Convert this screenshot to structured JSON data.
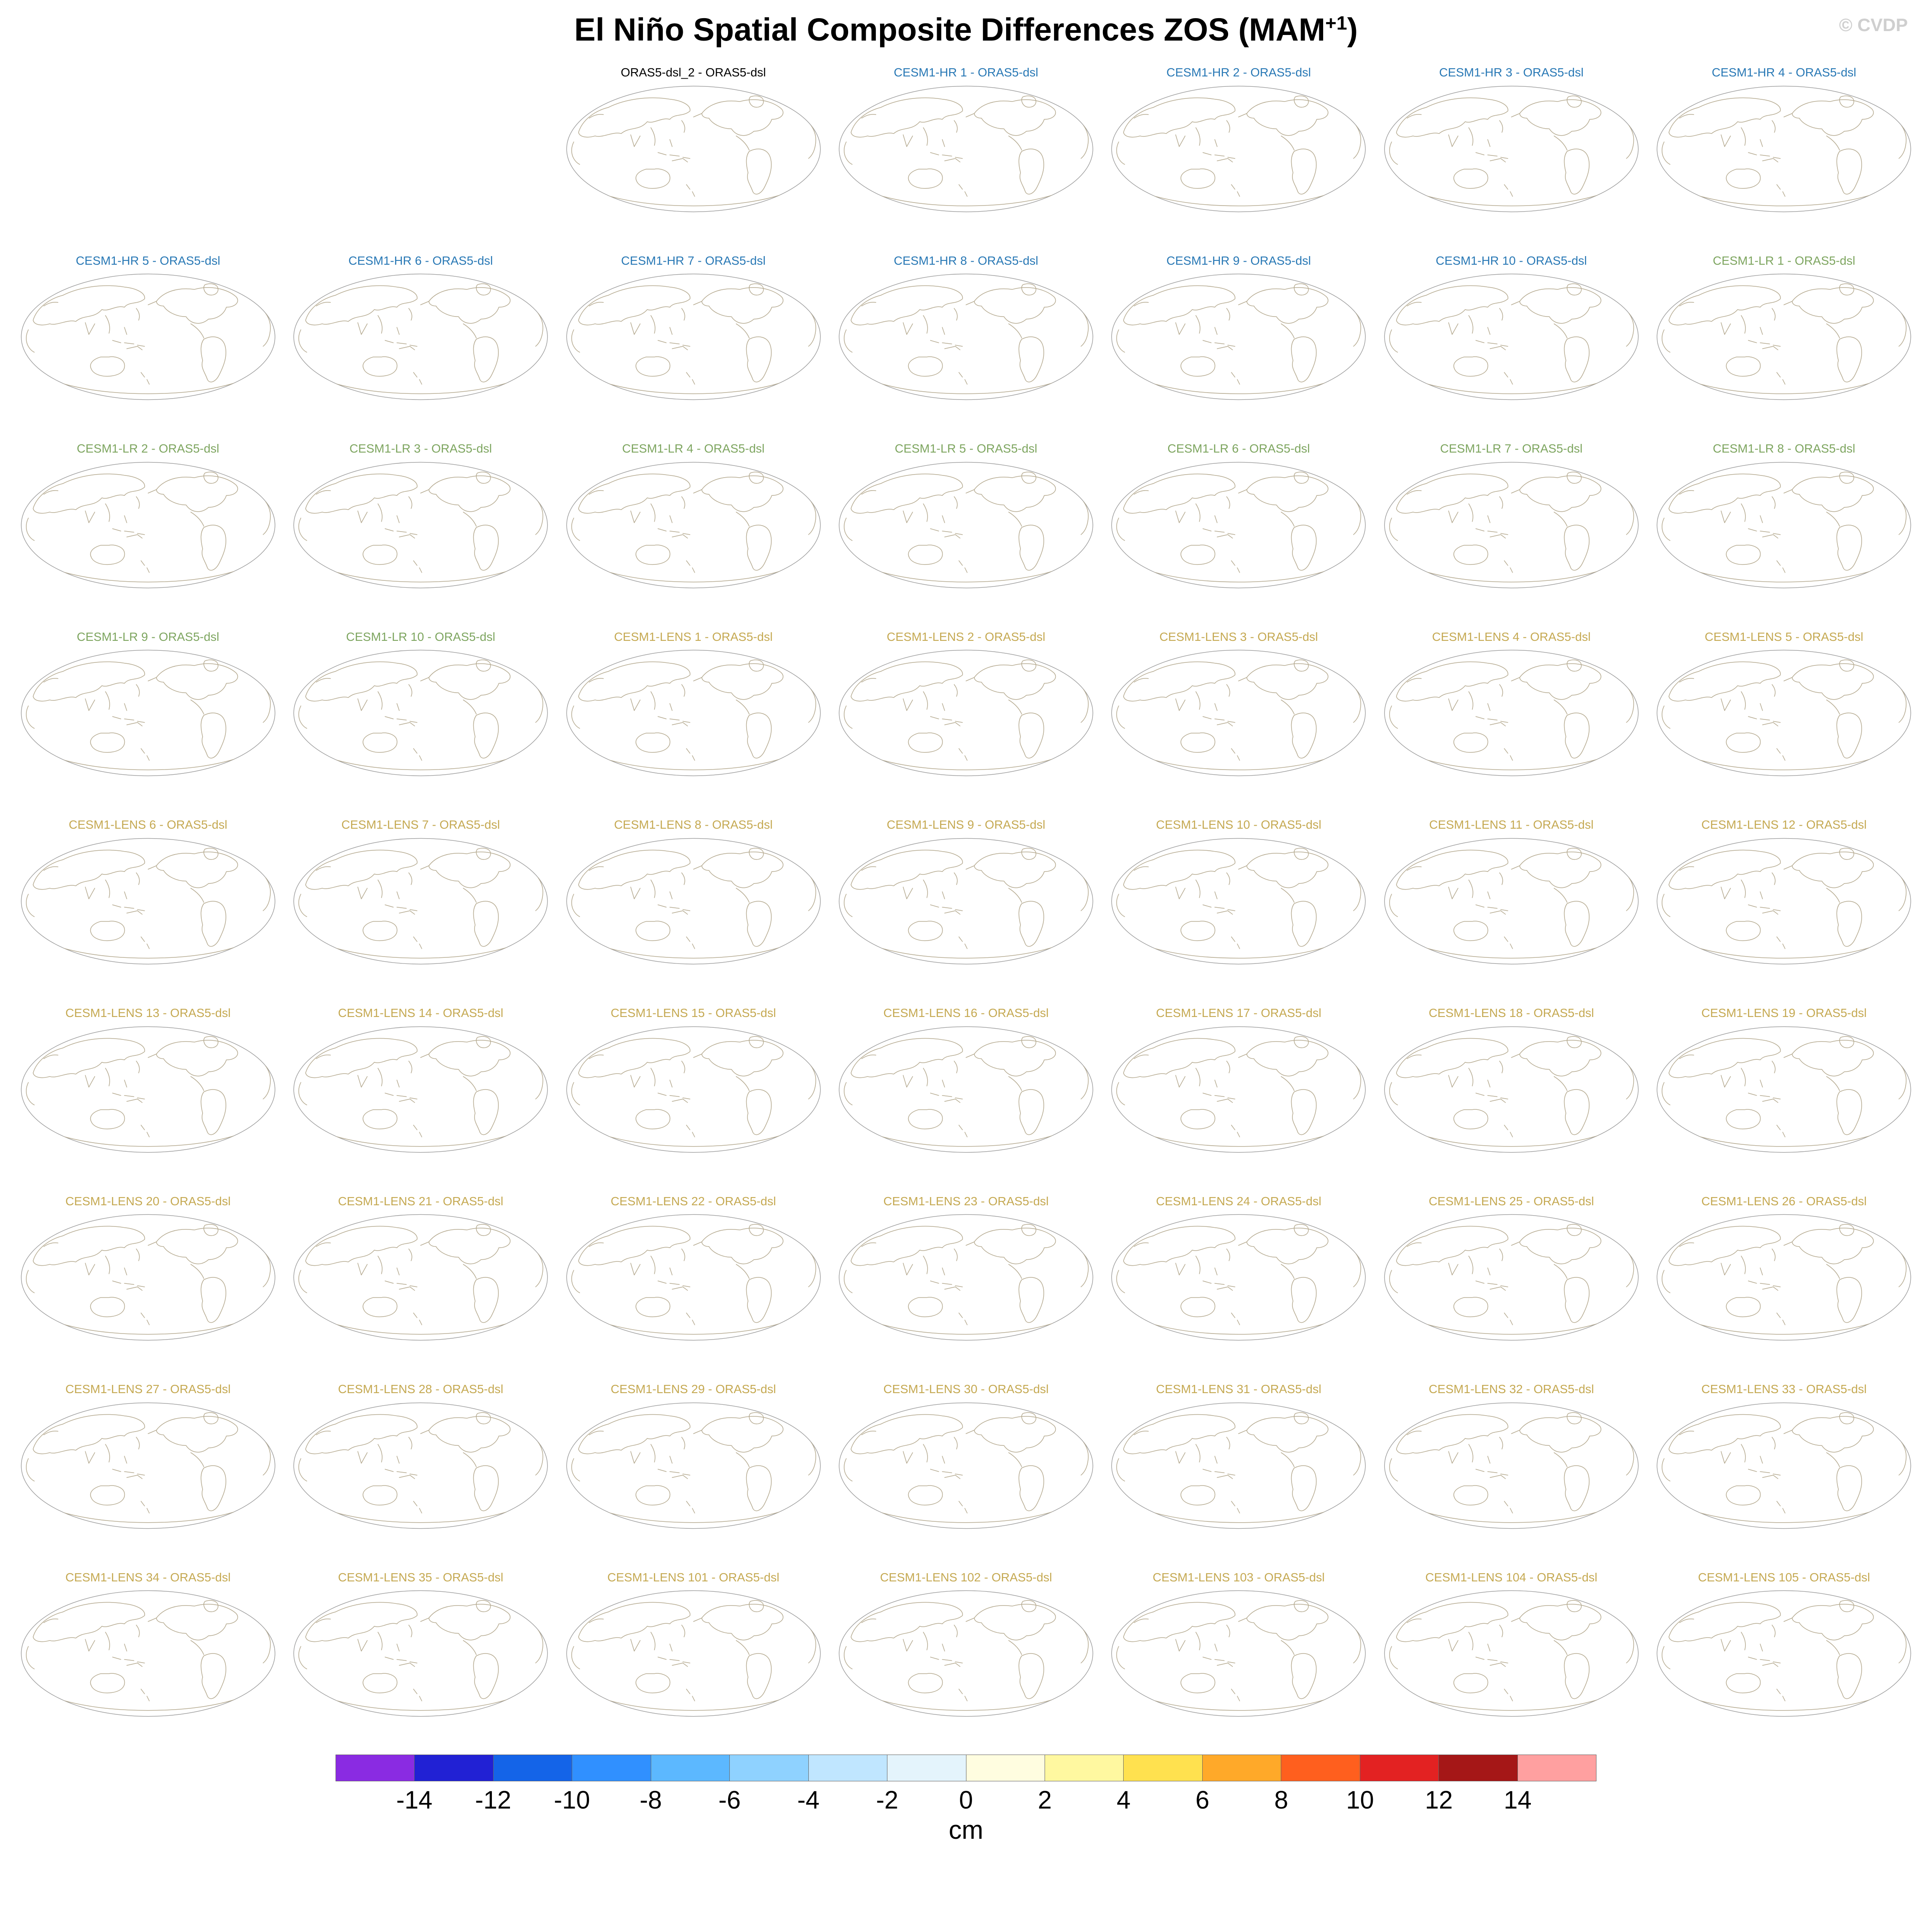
{
  "title": {
    "prefix": "El Niño Spatial Composite Differences ZOS (MAM",
    "superscript": "+1",
    "suffix": ")"
  },
  "watermark": "© CVDP",
  "panel_colors": {
    "obs": "#000000",
    "hr": "#2878b5",
    "lr": "#7da55f",
    "lens": "#c5a952"
  },
  "chart_data": {
    "type": "heatmap",
    "title": "El Niño Spatial Composite Differences ZOS (MAM+1)",
    "subtitle": "Grid of 61 Pacific-centered global map panels; each panel shows an El Niño ZOS composite difference versus ORAS5-dsl. Shading is near zero (faint) in all panels at this scale.",
    "unit": "cm",
    "layout": {
      "columns": 7,
      "rows": 9,
      "first_row_start_column": 3,
      "legend_position": "bottom"
    },
    "colorbar": {
      "unit": "cm",
      "ticks": [
        -14,
        -12,
        -10,
        -8,
        -6,
        -4,
        -2,
        0,
        2,
        4,
        6,
        8,
        10,
        12,
        14
      ],
      "colors": [
        "#8a2be2",
        "#2121d4",
        "#1464e8",
        "#3090ff",
        "#5cb8ff",
        "#8fd2ff",
        "#c0e6ff",
        "#e4f4fc",
        "#fffde0",
        "#fff8a0",
        "#ffe14f",
        "#ffa929",
        "#ff5f1e",
        "#e32222",
        "#a51717",
        "#ffa0a0"
      ]
    },
    "panels": [
      {
        "label": "ORAS5-dsl_2 - ORAS5-dsl",
        "group": "obs"
      },
      {
        "label": "CESM1-HR 1 - ORAS5-dsl",
        "group": "hr"
      },
      {
        "label": "CESM1-HR 2 - ORAS5-dsl",
        "group": "hr"
      },
      {
        "label": "CESM1-HR 3 - ORAS5-dsl",
        "group": "hr"
      },
      {
        "label": "CESM1-HR 4 - ORAS5-dsl",
        "group": "hr"
      },
      {
        "label": "CESM1-HR 5 - ORAS5-dsl",
        "group": "hr"
      },
      {
        "label": "CESM1-HR 6 - ORAS5-dsl",
        "group": "hr"
      },
      {
        "label": "CESM1-HR 7 - ORAS5-dsl",
        "group": "hr"
      },
      {
        "label": "CESM1-HR 8 - ORAS5-dsl",
        "group": "hr"
      },
      {
        "label": "CESM1-HR 9 - ORAS5-dsl",
        "group": "hr"
      },
      {
        "label": "CESM1-HR 10 - ORAS5-dsl",
        "group": "hr"
      },
      {
        "label": "CESM1-LR 1 - ORAS5-dsl",
        "group": "lr"
      },
      {
        "label": "CESM1-LR 2 - ORAS5-dsl",
        "group": "lr"
      },
      {
        "label": "CESM1-LR 3 - ORAS5-dsl",
        "group": "lr"
      },
      {
        "label": "CESM1-LR 4 - ORAS5-dsl",
        "group": "lr"
      },
      {
        "label": "CESM1-LR 5 - ORAS5-dsl",
        "group": "lr"
      },
      {
        "label": "CESM1-LR 6 - ORAS5-dsl",
        "group": "lr"
      },
      {
        "label": "CESM1-LR 7 - ORAS5-dsl",
        "group": "lr"
      },
      {
        "label": "CESM1-LR 8 - ORAS5-dsl",
        "group": "lr"
      },
      {
        "label": "CESM1-LR 9 - ORAS5-dsl",
        "group": "lr"
      },
      {
        "label": "CESM1-LR 10 - ORAS5-dsl",
        "group": "lr"
      },
      {
        "label": "CESM1-LENS 1 - ORAS5-dsl",
        "group": "lens"
      },
      {
        "label": "CESM1-LENS 2 - ORAS5-dsl",
        "group": "lens"
      },
      {
        "label": "CESM1-LENS 3 - ORAS5-dsl",
        "group": "lens"
      },
      {
        "label": "CESM1-LENS 4 - ORAS5-dsl",
        "group": "lens"
      },
      {
        "label": "CESM1-LENS 5 - ORAS5-dsl",
        "group": "lens"
      },
      {
        "label": "CESM1-LENS 6 - ORAS5-dsl",
        "group": "lens"
      },
      {
        "label": "CESM1-LENS 7 - ORAS5-dsl",
        "group": "lens"
      },
      {
        "label": "CESM1-LENS 8 - ORAS5-dsl",
        "group": "lens"
      },
      {
        "label": "CESM1-LENS 9 - ORAS5-dsl",
        "group": "lens"
      },
      {
        "label": "CESM1-LENS 10 - ORAS5-dsl",
        "group": "lens"
      },
      {
        "label": "CESM1-LENS 11 - ORAS5-dsl",
        "group": "lens"
      },
      {
        "label": "CESM1-LENS 12 - ORAS5-dsl",
        "group": "lens"
      },
      {
        "label": "CESM1-LENS 13 - ORAS5-dsl",
        "group": "lens"
      },
      {
        "label": "CESM1-LENS 14 - ORAS5-dsl",
        "group": "lens"
      },
      {
        "label": "CESM1-LENS 15 - ORAS5-dsl",
        "group": "lens"
      },
      {
        "label": "CESM1-LENS 16 - ORAS5-dsl",
        "group": "lens"
      },
      {
        "label": "CESM1-LENS 17 - ORAS5-dsl",
        "group": "lens"
      },
      {
        "label": "CESM1-LENS 18 - ORAS5-dsl",
        "group": "lens"
      },
      {
        "label": "CESM1-LENS 19 - ORAS5-dsl",
        "group": "lens"
      },
      {
        "label": "CESM1-LENS 20 - ORAS5-dsl",
        "group": "lens"
      },
      {
        "label": "CESM1-LENS 21 - ORAS5-dsl",
        "group": "lens"
      },
      {
        "label": "CESM1-LENS 22 - ORAS5-dsl",
        "group": "lens"
      },
      {
        "label": "CESM1-LENS 23 - ORAS5-dsl",
        "group": "lens"
      },
      {
        "label": "CESM1-LENS 24 - ORAS5-dsl",
        "group": "lens"
      },
      {
        "label": "CESM1-LENS 25 - ORAS5-dsl",
        "group": "lens"
      },
      {
        "label": "CESM1-LENS 26 - ORAS5-dsl",
        "group": "lens"
      },
      {
        "label": "CESM1-LENS 27 - ORAS5-dsl",
        "group": "lens"
      },
      {
        "label": "CESM1-LENS 28 - ORAS5-dsl",
        "group": "lens"
      },
      {
        "label": "CESM1-LENS 29 - ORAS5-dsl",
        "group": "lens"
      },
      {
        "label": "CESM1-LENS 30 - ORAS5-dsl",
        "group": "lens"
      },
      {
        "label": "CESM1-LENS 31 - ORAS5-dsl",
        "group": "lens"
      },
      {
        "label": "CESM1-LENS 32 - ORAS5-dsl",
        "group": "lens"
      },
      {
        "label": "CESM1-LENS 33 - ORAS5-dsl",
        "group": "lens"
      },
      {
        "label": "CESM1-LENS 34 - ORAS5-dsl",
        "group": "lens"
      },
      {
        "label": "CESM1-LENS 35 - ORAS5-dsl",
        "group": "lens"
      },
      {
        "label": "CESM1-LENS 101 - ORAS5-dsl",
        "group": "lens"
      },
      {
        "label": "CESM1-LENS 102 - ORAS5-dsl",
        "group": "lens"
      },
      {
        "label": "CESM1-LENS 103 - ORAS5-dsl",
        "group": "lens"
      },
      {
        "label": "CESM1-LENS 104 - ORAS5-dsl",
        "group": "lens"
      },
      {
        "label": "CESM1-LENS 105 - ORAS5-dsl",
        "group": "lens"
      }
    ]
  }
}
